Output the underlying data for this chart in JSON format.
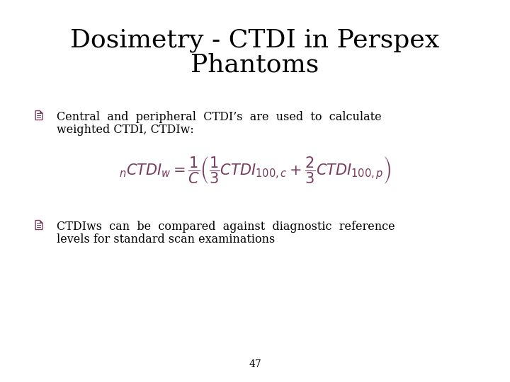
{
  "title_line1": "Dosimetry - CTDI in Perspex",
  "title_line2": "Phantoms",
  "title_fontsize": 26,
  "title_color": "#000000",
  "title_font": "DejaVu Serif",
  "bullet_color": "#7B3B5E",
  "text_color": "#000000",
  "text_fontsize": 11.5,
  "bullet1_line1": "Central  and  peripheral  CTDI’s  are  used  to  calculate",
  "bullet1_line2": "weighted CTDI, CTDIw:",
  "bullet2_line1": "CTDIws  can  be  compared  against  diagnostic  reference",
  "bullet2_line2": "levels for standard scan examinations",
  "formula_color": "#7B3B5E",
  "formula_fontsize": 15,
  "page_number": "47",
  "page_fontsize": 10,
  "background_color": "#ffffff"
}
